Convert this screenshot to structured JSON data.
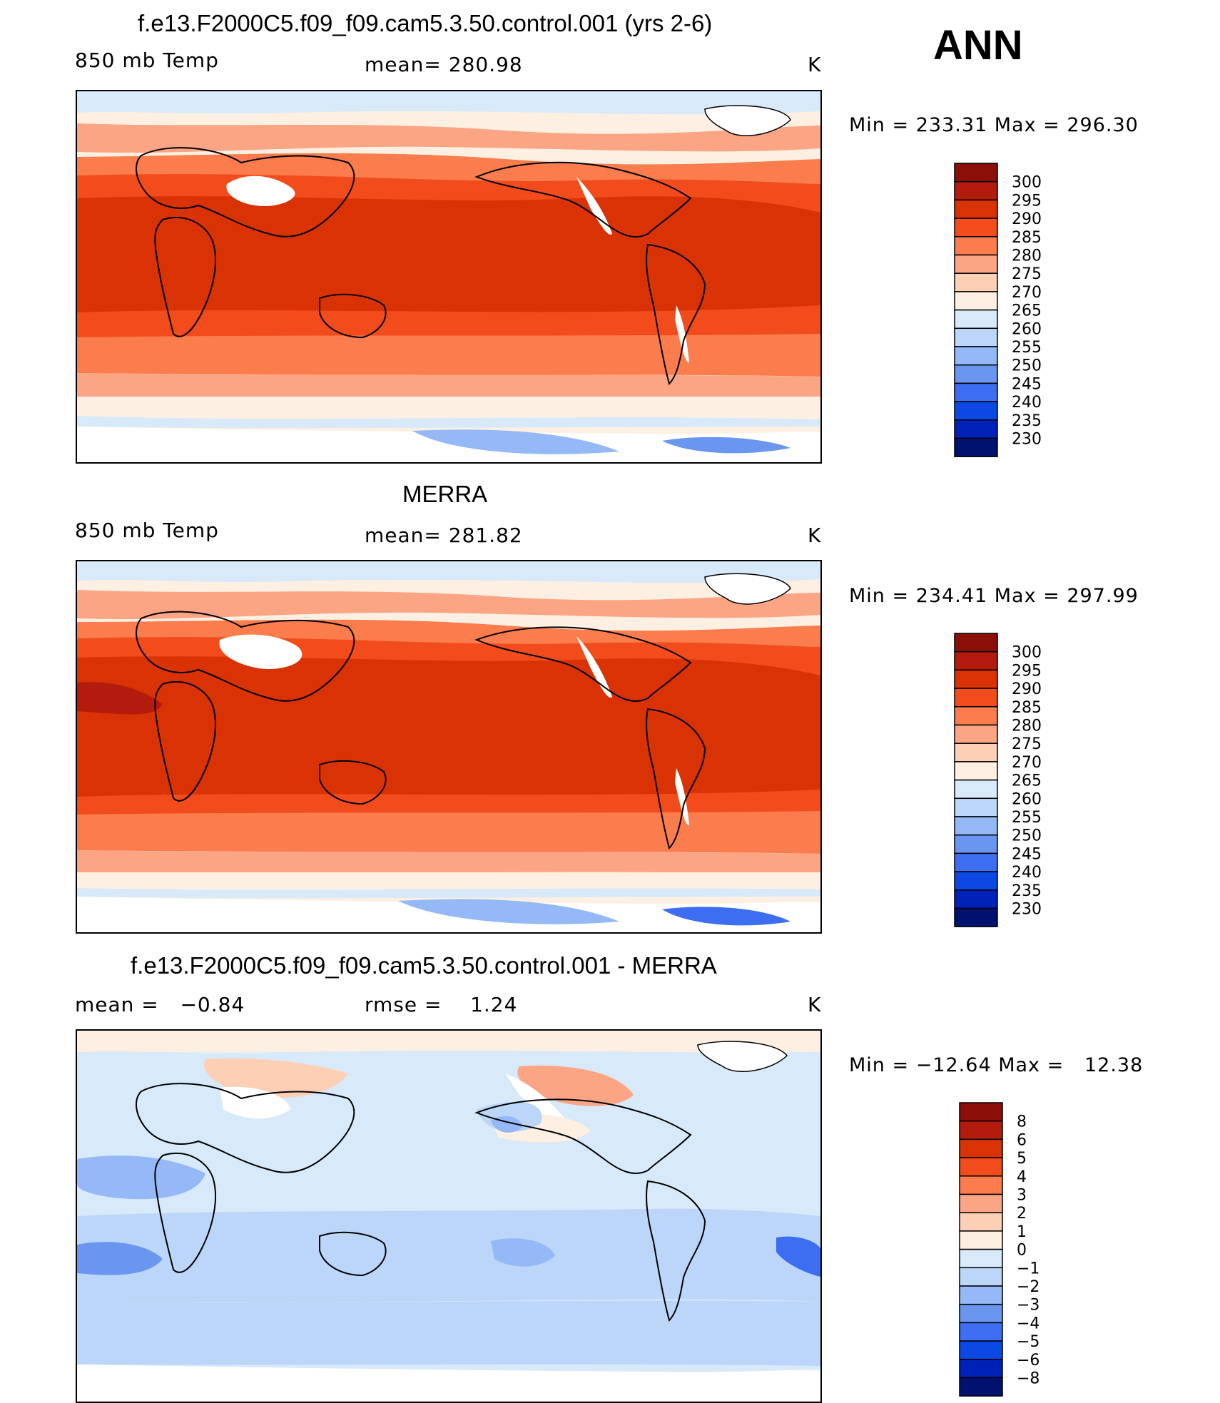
{
  "annotation": "ANN",
  "panels": [
    {
      "title": "f.e13.F2000C5.f09_f09.cam5.3.50.control.001 (yrs 2-6)",
      "left_label": "850 mb Temp",
      "center_label": "mean= 280.98",
      "units": "K",
      "minmax": "Min = 233.31 Max = 296.30"
    },
    {
      "title": "MERRA",
      "left_label": "850 mb Temp",
      "center_label": "mean= 281.82",
      "units": "K",
      "minmax": "Min = 234.41 Max = 297.99"
    },
    {
      "title": "f.e13.F2000C5.f09_f09.cam5.3.50.control.001 - MERRA",
      "left_label": "mean =   −0.84",
      "center_label": "rmse =    1.24",
      "units": "K",
      "minmax": "Min = −12.64 Max =   12.38"
    }
  ],
  "legends": {
    "temperature": {
      "labels": [
        "300",
        "295",
        "290",
        "285",
        "280",
        "275",
        "270",
        "265",
        "260",
        "255",
        "250",
        "245",
        "240",
        "235",
        "230"
      ],
      "colors": [
        "#8b0f08",
        "#b31b0c",
        "#d93305",
        "#f24c1c",
        "#fb7c4c",
        "#fca584",
        "#fdd0b6",
        "#fdf0e2",
        "#d8e9fa",
        "#bbd6f9",
        "#94b9f6",
        "#6a96f0",
        "#3d6df0",
        "#0c48e3",
        "#0021b8",
        "#001170"
      ]
    },
    "difference": {
      "labels": [
        "8",
        "6",
        "5",
        "4",
        "3",
        "2",
        "1",
        "0",
        "−1",
        "−2",
        "−3",
        "−4",
        "−5",
        "−6",
        "−8"
      ],
      "colors": [
        "#8b0f08",
        "#b31b0c",
        "#d93305",
        "#f24c1c",
        "#fb7c4c",
        "#fca584",
        "#fdd0b6",
        "#fdf0e2",
        "#d8e9fa",
        "#bbd6f9",
        "#94b9f6",
        "#6a96f0",
        "#3d6df0",
        "#0c48e3",
        "#0021b8",
        "#001170"
      ]
    }
  }
}
